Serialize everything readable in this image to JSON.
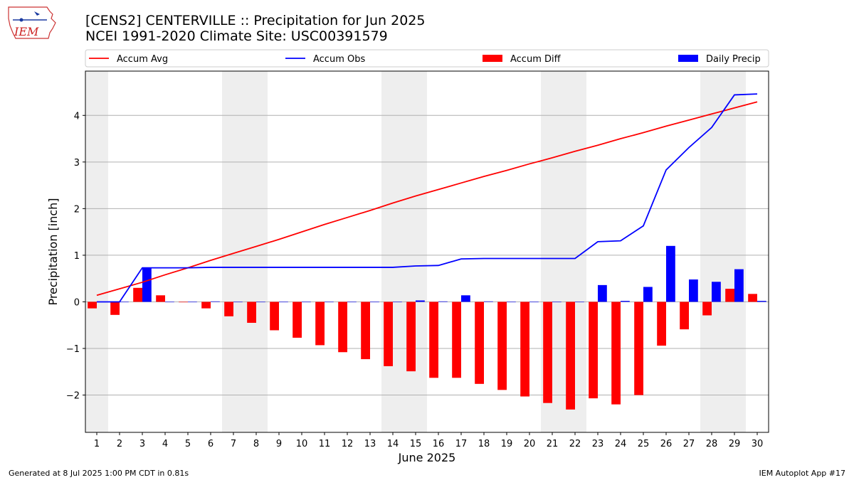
{
  "header": {
    "title": "[CENS2] CENTERVILLE :: Precipitation for Jun 2025",
    "subtitle": "NCEI 1991-2020 Climate Site: USC00391579"
  },
  "logo": {
    "text": "IEM",
    "icon": "iowa-state-map-icon"
  },
  "footer": {
    "left": "Generated at 8 Jul 2025 1:00 PM CDT in 0.81s",
    "right": "IEM Autoplot App #17"
  },
  "chart_data": {
    "type": "bar",
    "xlabel": "June 2025",
    "ylabel": "Precipitation [inch]",
    "ylim": [
      -2.8,
      4.95
    ],
    "yticks": [
      -2,
      -1,
      0,
      1,
      2,
      3,
      4
    ],
    "ytick_labels": [
      "−2",
      "−1",
      "0",
      "1",
      "2",
      "3",
      "4"
    ],
    "grid": true,
    "legend_position": "top",
    "weekend_shading": [
      [
        0.5,
        1.5
      ],
      [
        6.5,
        8.5
      ],
      [
        13.5,
        15.5
      ],
      [
        20.5,
        22.5
      ],
      [
        27.5,
        29.5
      ]
    ],
    "categories": [
      "1",
      "2",
      "3",
      "4",
      "5",
      "6",
      "7",
      "8",
      "9",
      "10",
      "11",
      "12",
      "13",
      "14",
      "15",
      "16",
      "17",
      "18",
      "19",
      "20",
      "21",
      "22",
      "23",
      "24",
      "25",
      "26",
      "27",
      "28",
      "29",
      "30"
    ],
    "colors": {
      "accum_avg": "#ff0000",
      "accum_obs": "#0000ff",
      "accum_diff": "#ff0000",
      "daily_precip": "#0000ff",
      "shading": "#eeeeee",
      "grid": "#b0b0b0"
    },
    "series": [
      {
        "name": "Accum Avg",
        "kind": "line",
        "values": [
          0.14,
          0.28,
          0.42,
          0.58,
          0.73,
          0.89,
          1.04,
          1.19,
          1.34,
          1.5,
          1.66,
          1.81,
          1.96,
          2.12,
          2.27,
          2.41,
          2.55,
          2.69,
          2.82,
          2.96,
          3.09,
          3.23,
          3.36,
          3.5,
          3.63,
          3.77,
          3.9,
          4.03,
          4.16,
          4.29
        ]
      },
      {
        "name": "Accum Obs",
        "kind": "line",
        "values": [
          0.0,
          0.0,
          0.73,
          0.73,
          0.73,
          0.74,
          0.74,
          0.74,
          0.74,
          0.74,
          0.74,
          0.74,
          0.74,
          0.74,
          0.77,
          0.78,
          0.92,
          0.93,
          0.93,
          0.93,
          0.93,
          0.93,
          1.29,
          1.31,
          1.63,
          2.83,
          3.31,
          3.74,
          4.44,
          4.46
        ]
      },
      {
        "name": "Accum Diff",
        "kind": "bar",
        "values": [
          -0.14,
          -0.28,
          0.3,
          0.14,
          -0.01,
          -0.14,
          -0.31,
          -0.45,
          -0.61,
          -0.77,
          -0.93,
          -1.08,
          -1.23,
          -1.38,
          -1.49,
          -1.63,
          -1.63,
          -1.76,
          -1.89,
          -2.03,
          -2.17,
          -2.31,
          -2.07,
          -2.2,
          -2.0,
          -0.94,
          -0.59,
          -0.29,
          0.28,
          0.17
        ]
      },
      {
        "name": "Daily Precip",
        "kind": "bar",
        "values": [
          0.0,
          0.0,
          0.73,
          0.0,
          0.0,
          0.01,
          0.0,
          0.0,
          0.0,
          0.0,
          0.0,
          0.0,
          0.0,
          0.0,
          0.03,
          0.01,
          0.14,
          0.01,
          0.0,
          0.0,
          0.0,
          0.0,
          0.36,
          0.02,
          0.32,
          1.2,
          0.48,
          0.43,
          0.7,
          0.02
        ]
      }
    ]
  }
}
